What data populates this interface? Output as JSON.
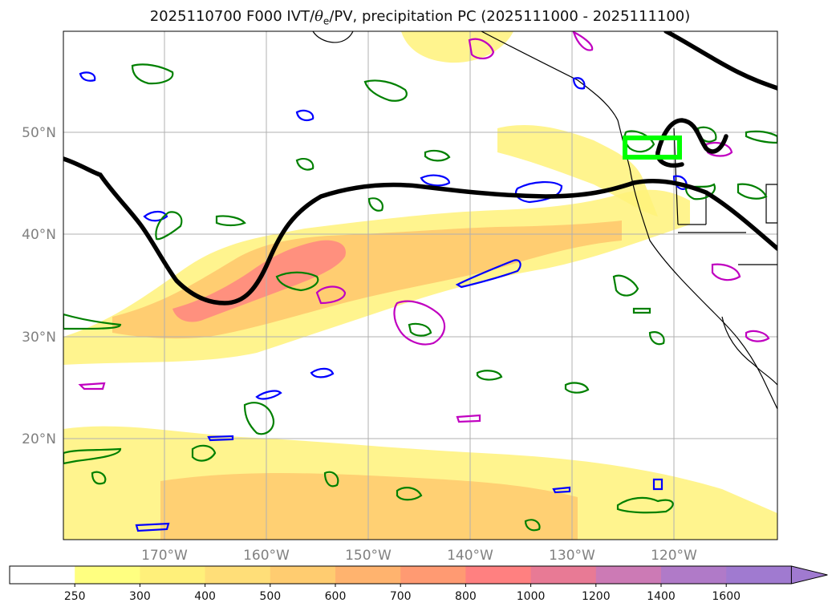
{
  "title": {
    "prefix": "2025110700 F000 IVT/",
    "theta": "θ",
    "theta_sub": "e",
    "suffix": "/PV, precipitation PC (2025111000 - 2025111100)"
  },
  "axes": {
    "lat_ticks": [
      "50°N",
      "40°N",
      "30°N",
      "20°N"
    ],
    "lon_ticks": [
      "170°W",
      "160°W",
      "150°W",
      "140°W",
      "130°W",
      "120°W"
    ]
  },
  "colorbar": {
    "levels": [
      "250",
      "300",
      "400",
      "500",
      "600",
      "700",
      "800",
      "1000",
      "1200",
      "1400",
      "1600"
    ],
    "colors": [
      "#ffffff",
      "#ffff80",
      "#fff07a",
      "#ffde78",
      "#ffcc70",
      "#ffb36e",
      "#ff9a72",
      "#ff8080",
      "#e87a95",
      "#cc7ab5",
      "#b07ac8",
      "#a07ad0"
    ],
    "extend": "max"
  },
  "colors": {
    "ivt_low": "#fff27a",
    "ivt_mid": "#ffc96e",
    "ivt_high": "#ff8a80",
    "theta_e_contour": "#008000",
    "pv_contour_blue": "#0000ff",
    "pv_contour_magenta": "#c000c0",
    "jet_line": "#000000",
    "target_box": "#00ff00",
    "grid": "#b0b0b0",
    "coast": "#000000"
  }
}
